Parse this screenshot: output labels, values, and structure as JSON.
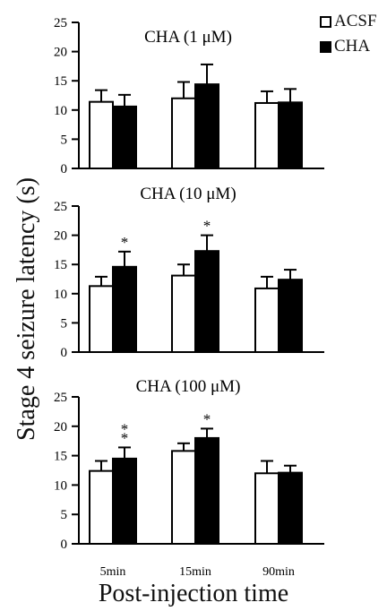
{
  "legend": {
    "acsf_label": "ACSF",
    "cha_label": "CHA"
  },
  "figure": {
    "y_axis_label": "Stage 4 seizure latency (s)",
    "x_axis_label": "Post-injection time"
  },
  "colors": {
    "acsf_fill": "#ffffff",
    "cha_fill": "#000000",
    "axis": "#000000"
  },
  "chart_data": [
    {
      "type": "bar",
      "title": "CHA (1 μM)",
      "xlabel": "",
      "ylabel": "Stage 4 seizure latency (s)",
      "ylim": [
        0,
        25
      ],
      "yticks": [
        0,
        5,
        10,
        15,
        20,
        25
      ],
      "categories": [
        "5min",
        "15min",
        "90min"
      ],
      "show_category_labels": false,
      "series": [
        {
          "name": "ACSF",
          "values": [
            11.4,
            12.0,
            11.2
          ],
          "errors": [
            2.0,
            2.8,
            2.0
          ]
        },
        {
          "name": "CHA",
          "values": [
            10.6,
            14.4,
            11.3
          ],
          "errors": [
            2.0,
            3.4,
            2.3
          ]
        }
      ],
      "significance": [
        [
          "",
          ""
        ],
        [
          "",
          ""
        ],
        [
          "",
          ""
        ]
      ]
    },
    {
      "type": "bar",
      "title": "CHA (10 μM)",
      "xlabel": "",
      "ylabel": "Stage 4 seizure latency (s)",
      "ylim": [
        0,
        25
      ],
      "yticks": [
        0,
        5,
        10,
        15,
        20,
        25
      ],
      "categories": [
        "5min",
        "15min",
        "90min"
      ],
      "show_category_labels": false,
      "series": [
        {
          "name": "ACSF",
          "values": [
            11.3,
            13.1,
            10.9
          ],
          "errors": [
            1.6,
            1.9,
            2.0
          ]
        },
        {
          "name": "CHA",
          "values": [
            14.6,
            17.3,
            12.4
          ],
          "errors": [
            2.6,
            2.7,
            1.7
          ]
        }
      ],
      "significance": [
        [
          "",
          "*"
        ],
        [
          "",
          "*"
        ],
        [
          "",
          ""
        ]
      ]
    },
    {
      "type": "bar",
      "title": "CHA (100 μM)",
      "xlabel": "Post-injection time",
      "ylabel": "Stage 4 seizure latency (s)",
      "ylim": [
        0,
        25
      ],
      "yticks": [
        0,
        5,
        10,
        15,
        20,
        25
      ],
      "categories": [
        "5min",
        "15min",
        "90min"
      ],
      "show_category_labels": true,
      "series": [
        {
          "name": "ACSF",
          "values": [
            12.4,
            15.8,
            12.0
          ],
          "errors": [
            1.7,
            1.3,
            2.1
          ]
        },
        {
          "name": "CHA",
          "values": [
            14.5,
            18.0,
            12.1
          ],
          "errors": [
            1.9,
            1.6,
            1.2
          ]
        }
      ],
      "significance": [
        [
          "",
          "**"
        ],
        [
          "",
          "*"
        ],
        [
          "",
          ""
        ]
      ]
    }
  ]
}
